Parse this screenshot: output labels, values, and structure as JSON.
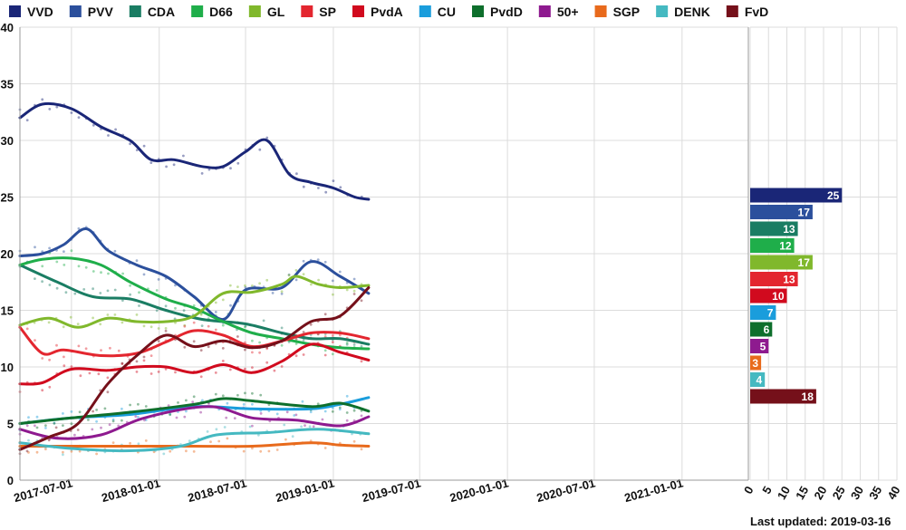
{
  "chart_data": [
    {
      "type": "line",
      "x_type": "date",
      "xlim": [
        "2017-03-15",
        "2021-05-20"
      ],
      "ylim": [
        0,
        40
      ],
      "x_ticks": [
        "2017-07-01",
        "2018-01-01",
        "2018-07-01",
        "2019-01-01",
        "2019-07-01",
        "2020-01-01",
        "2020-07-01",
        "2021-01-01"
      ],
      "y_ticks": [
        0,
        5,
        10,
        15,
        20,
        25,
        30,
        35,
        40
      ],
      "grid": true,
      "legend_position": "top",
      "series": [
        {
          "name": "VVD",
          "color": "#1a2677",
          "points": [
            [
              "2017-03-15",
              32.0
            ],
            [
              "2017-05-01",
              33.2
            ],
            [
              "2017-07-01",
              32.8
            ],
            [
              "2017-09-01",
              31.2
            ],
            [
              "2017-11-01",
              30.0
            ],
            [
              "2017-12-15",
              28.3
            ],
            [
              "2018-02-01",
              28.3
            ],
            [
              "2018-04-01",
              27.7
            ],
            [
              "2018-05-15",
              27.7
            ],
            [
              "2018-07-01",
              29.0
            ],
            [
              "2018-08-15",
              30.0
            ],
            [
              "2018-10-01",
              27.0
            ],
            [
              "2018-11-15",
              26.3
            ],
            [
              "2019-01-01",
              25.8
            ],
            [
              "2019-02-15",
              25.0
            ],
            [
              "2019-03-16",
              24.8
            ]
          ]
        },
        {
          "name": "PVV",
          "color": "#2b4f9c",
          "points": [
            [
              "2017-03-15",
              19.8
            ],
            [
              "2017-05-01",
              20.0
            ],
            [
              "2017-06-15",
              20.8
            ],
            [
              "2017-08-01",
              22.2
            ],
            [
              "2017-09-15",
              20.3
            ],
            [
              "2017-11-15",
              19.0
            ],
            [
              "2018-01-15",
              18.0
            ],
            [
              "2018-03-15",
              16.2
            ],
            [
              "2018-05-15",
              14.2
            ],
            [
              "2018-07-01",
              16.8
            ],
            [
              "2018-09-15",
              17.0
            ],
            [
              "2018-11-15",
              19.3
            ],
            [
              "2019-01-15",
              18.0
            ],
            [
              "2019-03-16",
              16.5
            ]
          ]
        },
        {
          "name": "CDA",
          "color": "#1a7d63",
          "points": [
            [
              "2017-03-15",
              19.0
            ],
            [
              "2017-06-01",
              17.5
            ],
            [
              "2017-08-15",
              16.2
            ],
            [
              "2017-11-01",
              16.0
            ],
            [
              "2018-01-15",
              15.0
            ],
            [
              "2018-04-01",
              14.2
            ],
            [
              "2018-07-01",
              13.8
            ],
            [
              "2018-09-15",
              13.0
            ],
            [
              "2018-11-15",
              12.5
            ],
            [
              "2019-01-15",
              12.5
            ],
            [
              "2019-03-16",
              12.0
            ]
          ]
        },
        {
          "name": "D66",
          "color": "#1fae4a",
          "points": [
            [
              "2017-03-15",
              19.0
            ],
            [
              "2017-05-01",
              19.5
            ],
            [
              "2017-07-01",
              19.6
            ],
            [
              "2017-09-01",
              19.0
            ],
            [
              "2017-11-01",
              17.5
            ],
            [
              "2018-01-15",
              16.0
            ],
            [
              "2018-03-15",
              15.2
            ],
            [
              "2018-05-15",
              14.0
            ],
            [
              "2018-07-15",
              13.0
            ],
            [
              "2018-09-15",
              12.5
            ],
            [
              "2018-11-15",
              12.0
            ],
            [
              "2019-01-15",
              11.7
            ],
            [
              "2019-03-16",
              11.6
            ]
          ]
        },
        {
          "name": "GL",
          "color": "#80b82c",
          "points": [
            [
              "2017-03-15",
              13.7
            ],
            [
              "2017-05-15",
              14.3
            ],
            [
              "2017-07-15",
              13.5
            ],
            [
              "2017-09-15",
              14.3
            ],
            [
              "2017-11-15",
              14.0
            ],
            [
              "2018-01-15",
              14.0
            ],
            [
              "2018-03-15",
              14.5
            ],
            [
              "2018-05-15",
              16.5
            ],
            [
              "2018-07-15",
              16.6
            ],
            [
              "2018-09-15",
              17.3
            ],
            [
              "2018-10-15",
              18.0
            ],
            [
              "2018-12-01",
              17.3
            ],
            [
              "2019-01-15",
              17.0
            ],
            [
              "2019-03-16",
              17.2
            ]
          ]
        },
        {
          "name": "SP",
          "color": "#e3262f",
          "points": [
            [
              "2017-03-15",
              13.5
            ],
            [
              "2017-05-01",
              11.2
            ],
            [
              "2017-06-15",
              11.5
            ],
            [
              "2017-09-01",
              11.0
            ],
            [
              "2017-11-15",
              11.2
            ],
            [
              "2018-01-15",
              12.2
            ],
            [
              "2018-03-15",
              13.2
            ],
            [
              "2018-05-15",
              12.8
            ],
            [
              "2018-07-15",
              11.8
            ],
            [
              "2018-09-15",
              12.3
            ],
            [
              "2018-11-15",
              13.0
            ],
            [
              "2019-01-15",
              13.0
            ],
            [
              "2019-03-16",
              12.5
            ]
          ]
        },
        {
          "name": "PvdA",
          "color": "#d10a1e",
          "points": [
            [
              "2017-03-15",
              8.5
            ],
            [
              "2017-05-01",
              8.6
            ],
            [
              "2017-07-01",
              9.8
            ],
            [
              "2017-09-15",
              9.7
            ],
            [
              "2017-11-15",
              10.0
            ],
            [
              "2018-01-15",
              10.0
            ],
            [
              "2018-03-15",
              9.5
            ],
            [
              "2018-05-15",
              10.2
            ],
            [
              "2018-07-15",
              9.5
            ],
            [
              "2018-09-15",
              10.5
            ],
            [
              "2018-11-15",
              12.0
            ],
            [
              "2019-01-15",
              11.3
            ],
            [
              "2019-03-16",
              10.6
            ]
          ]
        },
        {
          "name": "CU",
          "color": "#1a9ddc",
          "points": [
            [
              "2017-03-15",
              5.0
            ],
            [
              "2017-07-01",
              5.5
            ],
            [
              "2017-11-01",
              5.8
            ],
            [
              "2018-03-15",
              6.5
            ],
            [
              "2018-07-15",
              6.3
            ],
            [
              "2018-11-15",
              6.3
            ],
            [
              "2019-01-15",
              6.7
            ],
            [
              "2019-03-16",
              7.3
            ]
          ]
        },
        {
          "name": "PvdD",
          "color": "#0e6f2c",
          "points": [
            [
              "2017-03-15",
              5.0
            ],
            [
              "2017-07-01",
              5.5
            ],
            [
              "2017-11-01",
              6.0
            ],
            [
              "2018-03-15",
              6.7
            ],
            [
              "2018-05-15",
              7.2
            ],
            [
              "2018-07-15",
              7.0
            ],
            [
              "2018-11-15",
              6.5
            ],
            [
              "2019-01-15",
              6.8
            ],
            [
              "2019-03-16",
              6.1
            ]
          ]
        },
        {
          "name": "50+",
          "color": "#8e1a8f",
          "points": [
            [
              "2017-03-15",
              4.5
            ],
            [
              "2017-06-01",
              3.7
            ],
            [
              "2017-09-01",
              4.0
            ],
            [
              "2017-12-01",
              5.5
            ],
            [
              "2018-04-15",
              6.5
            ],
            [
              "2018-07-15",
              5.5
            ],
            [
              "2018-10-15",
              5.3
            ],
            [
              "2019-01-15",
              4.8
            ],
            [
              "2019-03-16",
              5.6
            ]
          ]
        },
        {
          "name": "SGP",
          "color": "#e86a1c",
          "points": [
            [
              "2017-03-15",
              3.0
            ],
            [
              "2017-07-01",
              3.0
            ],
            [
              "2017-11-01",
              3.0
            ],
            [
              "2018-03-15",
              3.0
            ],
            [
              "2018-07-15",
              3.0
            ],
            [
              "2018-11-15",
              3.3
            ],
            [
              "2019-01-15",
              3.1
            ],
            [
              "2019-03-16",
              3.0
            ]
          ]
        },
        {
          "name": "DENK",
          "color": "#45b9c1",
          "points": [
            [
              "2017-03-15",
              3.3
            ],
            [
              "2017-07-01",
              2.8
            ],
            [
              "2017-11-01",
              2.6
            ],
            [
              "2018-02-15",
              3.0
            ],
            [
              "2018-05-01",
              4.0
            ],
            [
              "2018-08-15",
              4.2
            ],
            [
              "2018-12-01",
              4.5
            ],
            [
              "2019-03-16",
              4.1
            ]
          ]
        },
        {
          "name": "FvD",
          "color": "#75101a",
          "points": [
            [
              "2017-03-15",
              2.7
            ],
            [
              "2017-05-15",
              3.8
            ],
            [
              "2017-07-15",
              5.0
            ],
            [
              "2017-09-15",
              8.5
            ],
            [
              "2017-11-15",
              11.0
            ],
            [
              "2018-01-15",
              12.8
            ],
            [
              "2018-03-15",
              11.8
            ],
            [
              "2018-05-15",
              12.3
            ],
            [
              "2018-07-15",
              11.7
            ],
            [
              "2018-09-15",
              12.3
            ],
            [
              "2018-11-15",
              14.0
            ],
            [
              "2019-01-15",
              14.5
            ],
            [
              "2019-03-16",
              17.0
            ]
          ]
        }
      ]
    },
    {
      "type": "bar",
      "orientation": "horizontal",
      "xlim": [
        0,
        40
      ],
      "x_ticks": [
        0,
        5,
        10,
        15,
        20,
        25,
        30,
        35,
        40
      ],
      "y_axis_shared_with_line_chart": true,
      "categories": [
        "VVD",
        "PVV",
        "CDA",
        "D66",
        "GL",
        "SP",
        "PvdA",
        "CU",
        "PvdD",
        "50+",
        "SGP",
        "DENK",
        "FvD"
      ],
      "values": [
        25,
        17,
        13,
        12,
        17,
        13,
        10,
        7,
        6,
        5,
        3,
        4,
        18
      ],
      "colors": [
        "#1a2677",
        "#2b4f9c",
        "#1a7d63",
        "#1fae4a",
        "#80b82c",
        "#e3262f",
        "#d10a1e",
        "#1a9ddc",
        "#0e6f2c",
        "#8e1a8f",
        "#e86a1c",
        "#45b9c1",
        "#75101a"
      ]
    }
  ],
  "footer": {
    "last_updated": "Last updated: 2019-03-16"
  }
}
